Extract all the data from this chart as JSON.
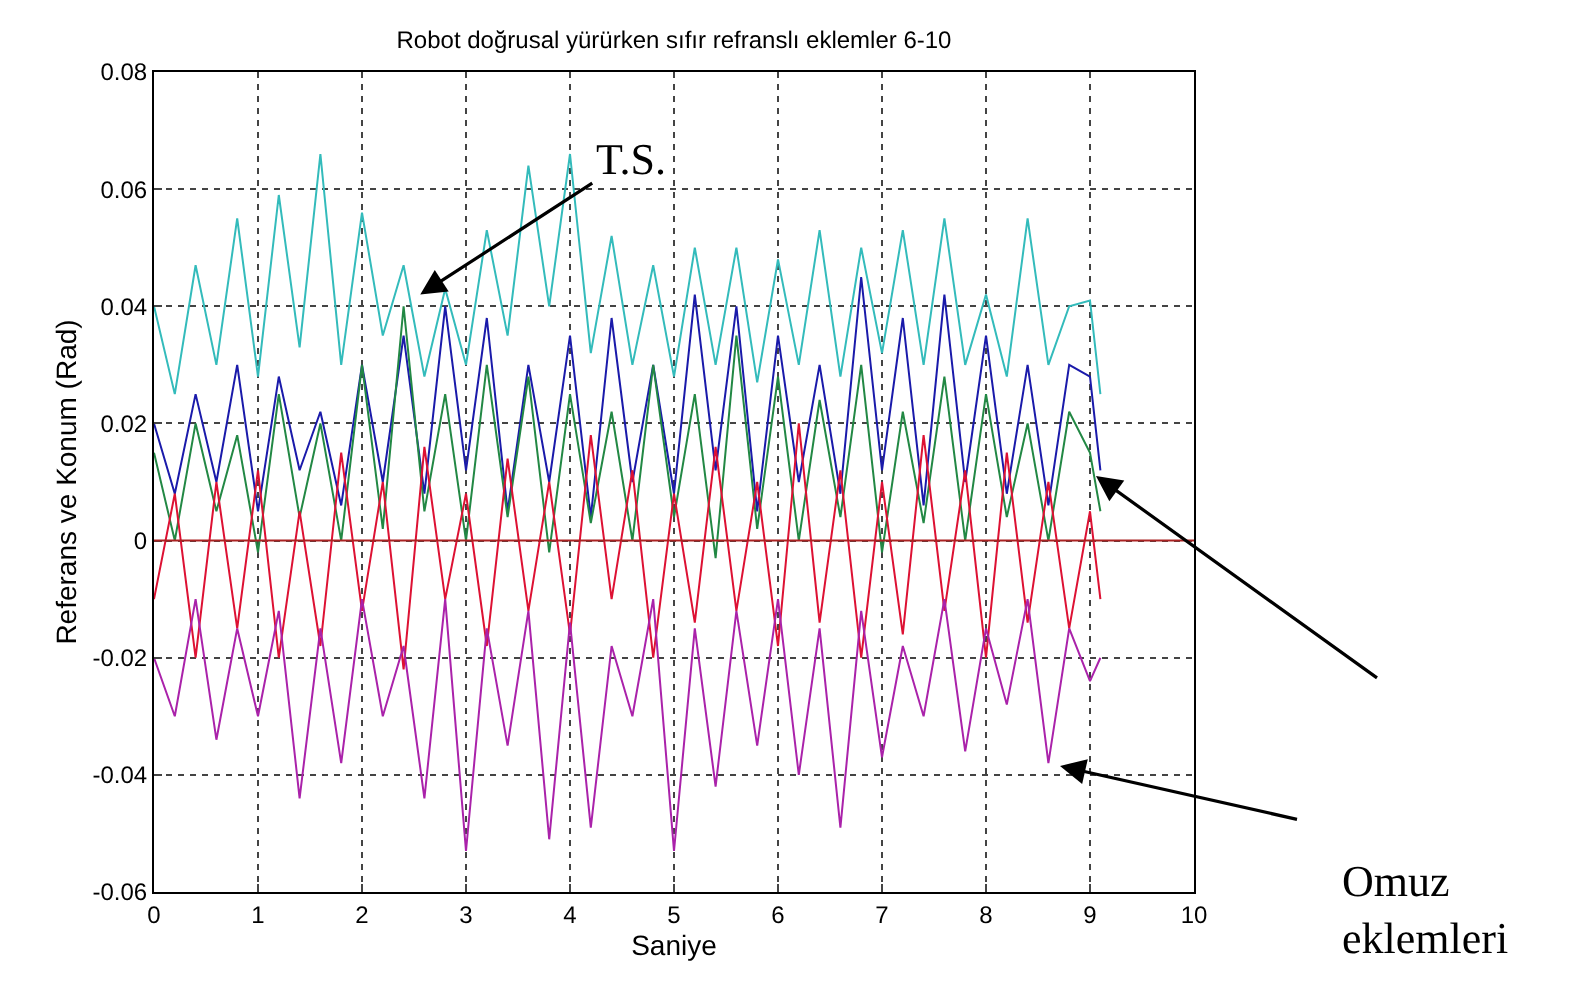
{
  "chart_data": {
    "type": "line",
    "title": "Robot doğrusal yürürken sıfır refranslı eklemler 6-10",
    "xlabel": "Saniye",
    "ylabel": "Referans ve Konum (Rad)",
    "x": [
      0,
      0.2,
      0.4,
      0.6,
      0.8,
      1,
      1.2,
      1.4,
      1.6,
      1.8,
      2,
      2.2,
      2.4,
      2.6,
      2.8,
      3,
      3.2,
      3.4,
      3.6,
      3.8,
      4,
      4.2,
      4.4,
      4.6,
      4.8,
      5,
      5.2,
      5.4,
      5.6,
      5.8,
      6,
      6.2,
      6.4,
      6.6,
      6.8,
      7,
      7.2,
      7.4,
      7.6,
      7.8,
      8,
      8.2,
      8.4,
      8.6,
      8.8,
      9,
      9.1
    ],
    "series": [
      {
        "color": "#33bbbb",
        "values": [
          0.04,
          0.025,
          0.047,
          0.03,
          0.055,
          0.028,
          0.059,
          0.033,
          0.066,
          0.03,
          0.056,
          0.035,
          0.047,
          0.028,
          0.043,
          0.03,
          0.053,
          0.035,
          0.064,
          0.04,
          0.066,
          0.032,
          0.052,
          0.03,
          0.047,
          0.028,
          0.05,
          0.03,
          0.05,
          0.027,
          0.048,
          0.03,
          0.053,
          0.028,
          0.05,
          0.032,
          0.053,
          0.03,
          0.055,
          0.03,
          0.042,
          0.028,
          0.055,
          0.03,
          0.04,
          0.041,
          0.025
        ]
      },
      {
        "color": "#1a1aaa",
        "values": [
          0.02,
          0.008,
          0.025,
          0.01,
          0.03,
          0.005,
          0.028,
          0.012,
          0.022,
          0.006,
          0.03,
          0.01,
          0.035,
          0.008,
          0.04,
          0.012,
          0.038,
          0.005,
          0.03,
          0.01,
          0.035,
          0.004,
          0.038,
          0.01,
          0.03,
          0.008,
          0.042,
          0.012,
          0.04,
          0.005,
          0.035,
          0.01,
          0.03,
          0.008,
          0.045,
          0.012,
          0.038,
          0.006,
          0.042,
          0.01,
          0.035,
          0.008,
          0.03,
          0.006,
          0.03,
          0.028,
          0.012
        ]
      },
      {
        "color": "#228844",
        "values": [
          0.015,
          0.0,
          0.02,
          0.005,
          0.018,
          -0.002,
          0.025,
          0.004,
          0.02,
          0.0,
          0.03,
          0.002,
          0.04,
          0.005,
          0.025,
          0.0,
          0.03,
          0.004,
          0.028,
          -0.002,
          0.025,
          0.003,
          0.022,
          0.0,
          0.03,
          0.004,
          0.025,
          -0.003,
          0.035,
          0.002,
          0.028,
          0.0,
          0.024,
          0.004,
          0.03,
          -0.002,
          0.022,
          0.003,
          0.028,
          0.0,
          0.025,
          0.004,
          0.02,
          0.0,
          0.022,
          0.015,
          0.005
        ]
      },
      {
        "color": "#dd1133",
        "values": [
          -0.01,
          0.008,
          -0.02,
          0.01,
          -0.015,
          0.012,
          -0.02,
          0.005,
          -0.018,
          0.015,
          -0.012,
          0.01,
          -0.022,
          0.016,
          -0.01,
          0.008,
          -0.018,
          0.014,
          -0.012,
          0.01,
          -0.016,
          0.018,
          -0.01,
          0.012,
          -0.02,
          0.008,
          -0.014,
          0.016,
          -0.012,
          0.01,
          -0.018,
          0.02,
          -0.014,
          0.012,
          -0.02,
          0.01,
          -0.016,
          0.018,
          -0.012,
          0.012,
          -0.02,
          0.015,
          -0.014,
          0.01,
          -0.015,
          0.005,
          -0.01
        ]
      },
      {
        "color": "#aa22aa",
        "values": [
          -0.02,
          -0.03,
          -0.01,
          -0.034,
          -0.015,
          -0.03,
          -0.012,
          -0.044,
          -0.015,
          -0.038,
          -0.01,
          -0.03,
          -0.018,
          -0.044,
          -0.01,
          -0.053,
          -0.015,
          -0.035,
          -0.012,
          -0.051,
          -0.014,
          -0.049,
          -0.018,
          -0.03,
          -0.01,
          -0.053,
          -0.015,
          -0.042,
          -0.012,
          -0.035,
          -0.01,
          -0.04,
          -0.015,
          -0.049,
          -0.012,
          -0.037,
          -0.018,
          -0.03,
          -0.01,
          -0.036,
          -0.015,
          -0.028,
          -0.01,
          -0.038,
          -0.015,
          -0.024,
          -0.02
        ]
      }
    ],
    "ref_lines": [
      {
        "axis": "y",
        "value": 0,
        "color": "#aa2222"
      }
    ],
    "annotations": [
      {
        "text": "T.S.",
        "x": 2.56,
        "y": 0.042
      },
      "Omuz\neklemleri"
    ],
    "xlim": [
      0,
      10
    ],
    "xticks": [
      0,
      1,
      2,
      3,
      4,
      5,
      6,
      7,
      8,
      9,
      10
    ],
    "ylim": [
      -0.06,
      0.08
    ],
    "yticks": [
      {
        "value": -0.06,
        "label": "-0.06"
      },
      {
        "value": -0.04,
        "label": "-0.04"
      },
      {
        "value": -0.02,
        "label": "-0.02"
      },
      0,
      {
        "value": 0.02,
        "label": "0.02"
      },
      {
        "value": 0.04,
        "label": "0.04"
      },
      {
        "value": 0.06,
        "label": "0.06"
      },
      {
        "value": 0.08,
        "label": "0.08"
      }
    ],
    "grid": true,
    "marker": "none",
    "line_style": "solid"
  }
}
